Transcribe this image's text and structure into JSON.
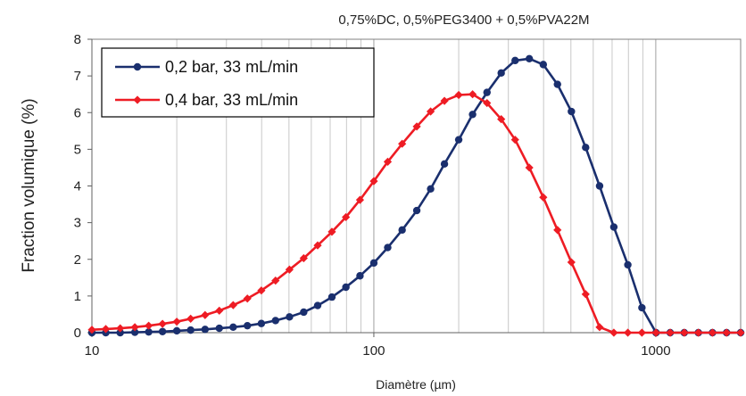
{
  "chart_data": {
    "type": "line",
    "title": "0,75%DC, 0,5%PEG3400 + 0,5%PVA22M",
    "xlabel": "Diamètre (µm)",
    "ylabel": "Fraction volumique  (%)",
    "xscale": "log",
    "xlim": [
      10,
      2000
    ],
    "ylim": [
      0,
      8
    ],
    "xticks": [
      "10",
      "100",
      "1000"
    ],
    "yticks": [
      "0",
      "1",
      "2",
      "3",
      "4",
      "5",
      "6",
      "7",
      "8"
    ],
    "grid": "vertical minor log gridlines",
    "legend_position": "top-left",
    "x": [
      10,
      11.2,
      12.6,
      14.2,
      15.9,
      17.8,
      20,
      22.4,
      25.2,
      28.3,
      31.7,
      35.6,
      39.9,
      44.8,
      50.2,
      56.4,
      63.2,
      71,
      79.6,
      89.3,
      100,
      112,
      126,
      142,
      159,
      178,
      200,
      224,
      252,
      283,
      317,
      356,
      399,
      448,
      502,
      564,
      632,
      710,
      796,
      893,
      1002,
      1125,
      1262,
      1416,
      1589,
      1783,
      2000
    ],
    "series": [
      {
        "name": "0,2 bar, 33 mL/min",
        "color": "#1a2f6e",
        "marker": "circle",
        "values": [
          0,
          0,
          0,
          0.01,
          0.02,
          0.03,
          0.05,
          0.07,
          0.09,
          0.12,
          0.15,
          0.19,
          0.25,
          0.33,
          0.43,
          0.56,
          0.74,
          0.97,
          1.24,
          1.55,
          1.9,
          2.32,
          2.8,
          3.33,
          3.92,
          4.6,
          5.26,
          5.95,
          6.55,
          7.08,
          7.42,
          7.47,
          7.31,
          6.77,
          6.03,
          5.05,
          4.0,
          2.88,
          1.85,
          0.68,
          0,
          0,
          0,
          0,
          0,
          0,
          0
        ]
      },
      {
        "name": "0,4 bar, 33 mL/min",
        "color": "#ee1c24",
        "marker": "diamond",
        "values": [
          0.08,
          0.1,
          0.12,
          0.15,
          0.19,
          0.24,
          0.3,
          0.38,
          0.48,
          0.6,
          0.75,
          0.93,
          1.15,
          1.42,
          1.72,
          2.03,
          2.38,
          2.75,
          3.15,
          3.62,
          4.13,
          4.66,
          5.15,
          5.62,
          6.03,
          6.32,
          6.48,
          6.5,
          6.26,
          5.82,
          5.26,
          4.5,
          3.69,
          2.8,
          1.92,
          1.05,
          0.15,
          0,
          0,
          0,
          0,
          0,
          0,
          0,
          0,
          0,
          0
        ]
      }
    ]
  }
}
